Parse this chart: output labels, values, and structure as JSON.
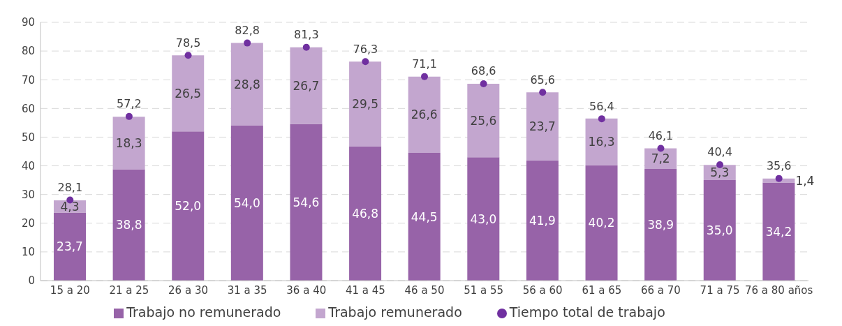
{
  "chart_data": {
    "type": "bar",
    "stacked": true,
    "categories": [
      "15 a 20",
      "21 a 25",
      "26 a 30",
      "31 a 35",
      "36 a 40",
      "41 a 45",
      "46 a 50",
      "51 a 55",
      "56 a 60",
      "61 a 65",
      "66 a 70",
      "71 a 75",
      "76 a 80 años"
    ],
    "series": [
      {
        "name": "Trabajo no remunerado",
        "color": "#9763a8",
        "values": [
          23.7,
          38.8,
          52.0,
          54.0,
          54.6,
          46.8,
          44.5,
          43.0,
          41.9,
          40.2,
          38.9,
          35.0,
          34.2
        ],
        "value_labels": [
          "23,7",
          "38,8",
          "52,0",
          "54,0",
          "54,6",
          "46,8",
          "44,5",
          "43,0",
          "41,9",
          "40,2",
          "38,9",
          "35,0",
          "34,2"
        ]
      },
      {
        "name": "Trabajo remunerado",
        "color": "#c3a6cf",
        "values": [
          4.3,
          18.3,
          26.5,
          28.8,
          26.7,
          29.5,
          26.6,
          25.6,
          23.7,
          16.3,
          7.2,
          5.3,
          1.4
        ],
        "value_labels": [
          "4,3",
          "18,3",
          "26,5",
          "28,8",
          "26,7",
          "29,5",
          "26,6",
          "25,6",
          "23,7",
          "16,3",
          "7,2",
          "5,3",
          "1,4"
        ]
      },
      {
        "name": "Tiempo total de trabajo",
        "type": "scatter",
        "marker": "circle",
        "color": "#7030a0",
        "values": [
          28.1,
          57.2,
          78.5,
          82.8,
          81.3,
          76.3,
          71.1,
          68.6,
          65.6,
          56.4,
          46.1,
          40.4,
          35.6
        ],
        "value_labels": [
          "28,1",
          "57,2",
          "78,5",
          "82,8",
          "81,3",
          "76,3",
          "71,1",
          "68,6",
          "65,6",
          "56,4",
          "46,1",
          "40,4",
          "35,6"
        ]
      }
    ],
    "ylim": [
      0,
      90
    ],
    "yticks": [
      0,
      10,
      20,
      30,
      40,
      50,
      60,
      70,
      80,
      90
    ],
    "grid": "y",
    "legend": "bottom"
  }
}
